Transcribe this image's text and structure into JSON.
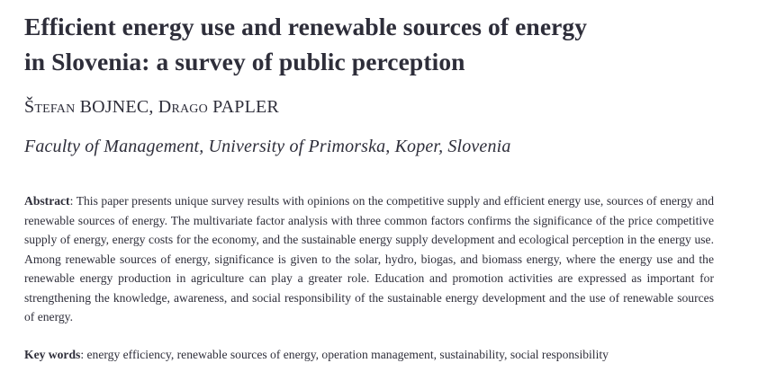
{
  "paper": {
    "title_line1": "Efficient energy use and renewable sources of energy",
    "title_line2": "in Slovenia: a survey of public perception",
    "authors": [
      {
        "given": "Štefan",
        "family": "BOJNEC"
      },
      {
        "given": "Drago",
        "family": "PAPLER"
      }
    ],
    "author_separator": ", ",
    "affiliation": "Faculty of Management, University of Primorska, Koper, Slovenia",
    "abstract": {
      "label": "Abstract",
      "separator": ": ",
      "text": "This paper presents unique survey results with opinions on the competitive supply and efficient energy use, sources of energy and renewable sources of energy. The multivariate factor analysis with three common factors confirms the significance of the price competitive supply of energy, energy costs for the economy, and the sustainable energy supply development and ecological perception in the energy use. Among renewable sources of energy, significance is given to the solar, hydro, biogas, and biomass energy, where the energy use and the renewable energy production in agriculture can play a greater role. Education and promotion activities are expressed as important for strengthening the knowledge, awareness, and social responsibility of the sustainable energy development and the use of renewable sources of energy."
    },
    "keywords": {
      "label": "Key words",
      "separator": ": ",
      "text": "energy efficiency, renewable sources of energy, operation management, sustainability, social responsibility"
    }
  }
}
